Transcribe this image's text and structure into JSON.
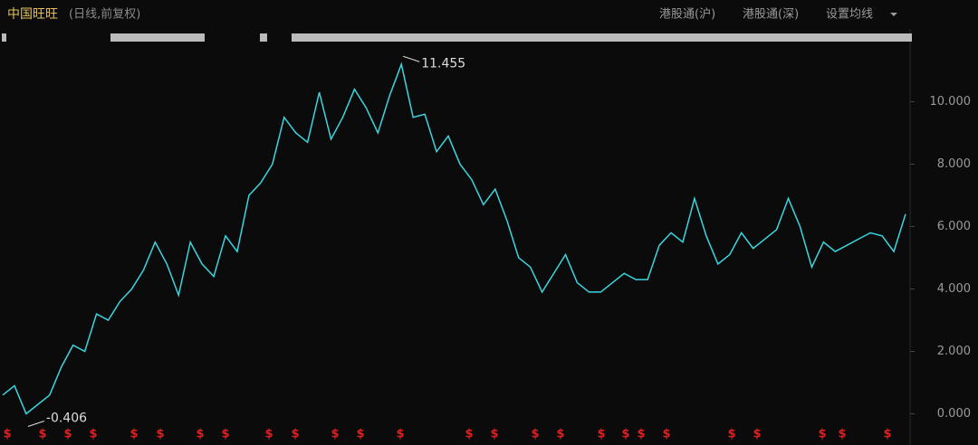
{
  "header": {
    "name": "中国旺旺",
    "mode": "(日线,前复权)",
    "buttons": [
      "港股通(沪)",
      "港股通(深)",
      "设置均线"
    ]
  },
  "chart_data": {
    "type": "line",
    "color": "#3ad6e0",
    "values": [
      0.6,
      0.9,
      0.0,
      0.3,
      0.6,
      1.5,
      2.2,
      2.0,
      3.2,
      3.0,
      3.6,
      4.0,
      4.6,
      5.5,
      4.8,
      3.8,
      5.5,
      4.8,
      4.4,
      5.7,
      5.2,
      7.0,
      7.4,
      8.0,
      9.5,
      9.0,
      8.7,
      10.3,
      8.8,
      9.5,
      10.4,
      9.8,
      9.0,
      10.2,
      11.2,
      9.5,
      9.6,
      8.4,
      8.9,
      8.0,
      7.5,
      6.7,
      7.2,
      6.2,
      5.0,
      4.7,
      3.9,
      4.5,
      5.1,
      4.2,
      3.9,
      3.9,
      4.2,
      4.5,
      4.3,
      4.3,
      5.4,
      5.8,
      5.5,
      6.9,
      5.7,
      4.8,
      5.1,
      5.8,
      5.3,
      5.6,
      5.9,
      6.9,
      6.0,
      4.7,
      5.5,
      5.2,
      5.4,
      5.6,
      5.8,
      5.7,
      5.2,
      6.4
    ],
    "ylim": [
      -1.0,
      12.1
    ],
    "yticks": [
      {
        "value": 0,
        "label": "0.000"
      },
      {
        "value": 2,
        "label": "2.000"
      },
      {
        "value": 4,
        "label": "4.000"
      },
      {
        "value": 6,
        "label": "6.000"
      },
      {
        "value": 8,
        "label": "8.000"
      },
      {
        "value": 10,
        "label": "10.000"
      }
    ],
    "high": 11.455,
    "low": -0.406,
    "dividend_marker": "$"
  }
}
